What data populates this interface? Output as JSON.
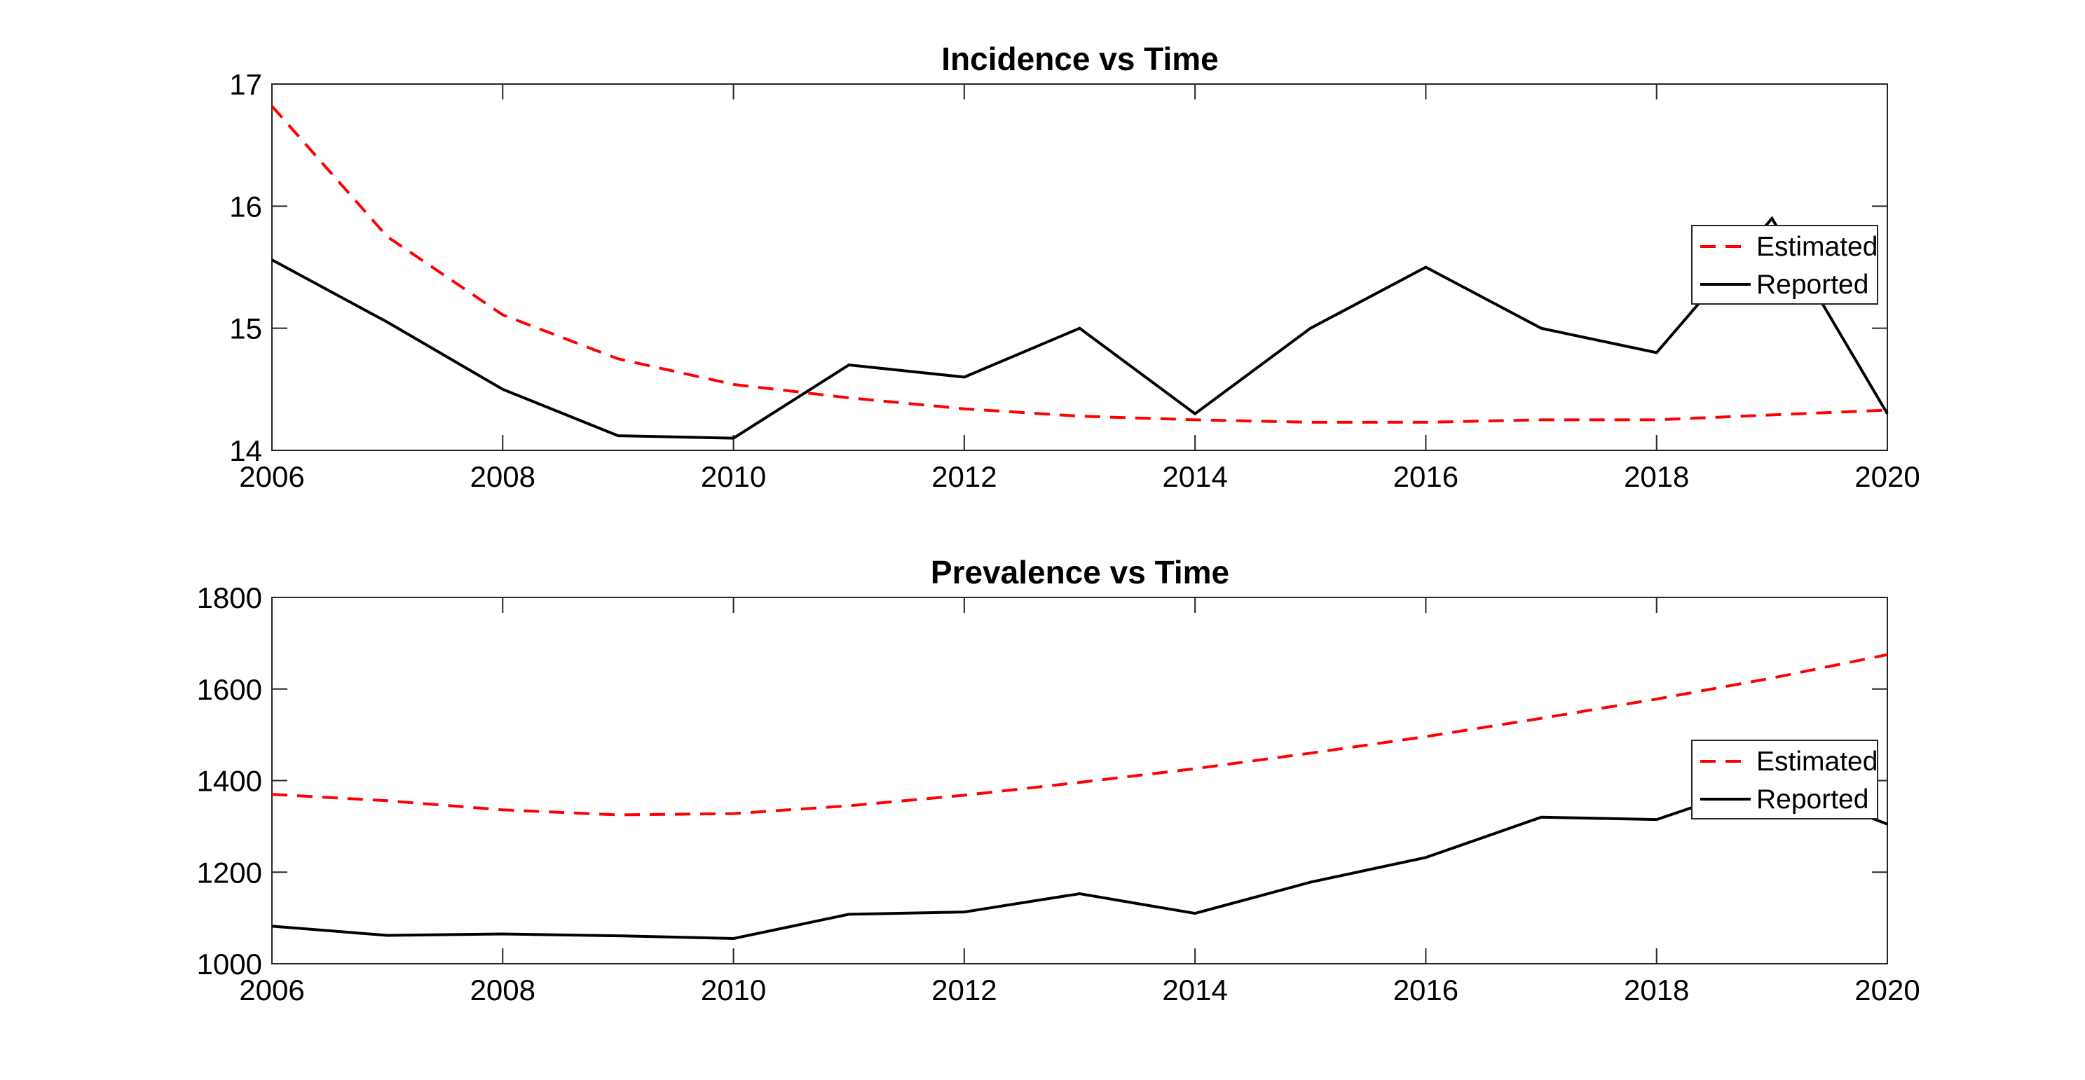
{
  "colors": {
    "estimated": "#ff0000",
    "reported": "#000000"
  },
  "chart_data": [
    {
      "type": "line",
      "title": "Incidence vs Time",
      "xlabel": "",
      "ylabel": "",
      "xlim": [
        2006,
        2020
      ],
      "ylim": [
        14,
        17
      ],
      "xticks": [
        "2006",
        "2008",
        "2010",
        "2012",
        "2014",
        "2016",
        "2018",
        "2020"
      ],
      "yticks": [
        "14",
        "15",
        "16",
        "17"
      ],
      "grid": false,
      "legend_position": "right",
      "x": [
        2006,
        2007,
        2008,
        2009,
        2010,
        2011,
        2012,
        2013,
        2014,
        2015,
        2016,
        2017,
        2018,
        2019,
        2020
      ],
      "series": [
        {
          "name": "Estimated",
          "style": "dashed",
          "color": "#ff0000",
          "values": [
            16.82,
            15.75,
            15.11,
            14.75,
            14.54,
            14.43,
            14.34,
            14.28,
            14.25,
            14.23,
            14.23,
            14.25,
            14.25,
            14.29,
            14.33
          ]
        },
        {
          "name": "Reported",
          "style": "solid",
          "color": "#000000",
          "values": [
            15.56,
            15.05,
            14.5,
            14.12,
            14.1,
            14.7,
            14.6,
            15.0,
            14.3,
            15.0,
            15.5,
            15.0,
            14.8,
            15.9,
            14.3
          ]
        }
      ]
    },
    {
      "type": "line",
      "title": "Prevalence vs Time",
      "xlabel": "",
      "ylabel": "",
      "xlim": [
        2006,
        2020
      ],
      "ylim": [
        1000,
        1800
      ],
      "xticks": [
        "2006",
        "2008",
        "2010",
        "2012",
        "2014",
        "2016",
        "2018",
        "2020"
      ],
      "yticks": [
        "1000",
        "1200",
        "1400",
        "1600",
        "1800"
      ],
      "grid": false,
      "legend_position": "right",
      "x": [
        2006,
        2007,
        2008,
        2009,
        2010,
        2011,
        2012,
        2013,
        2014,
        2015,
        2016,
        2017,
        2018,
        2019,
        2020
      ],
      "series": [
        {
          "name": "Estimated",
          "style": "dashed",
          "color": "#ff0000",
          "values": [
            1370,
            1356,
            1336,
            1325,
            1328,
            1345,
            1368,
            1396,
            1426,
            1460,
            1496,
            1536,
            1578,
            1624,
            1675
          ]
        },
        {
          "name": "Reported",
          "style": "solid",
          "color": "#000000",
          "values": [
            1082,
            1062,
            1065,
            1061,
            1055,
            1108,
            1113,
            1153,
            1110,
            1178,
            1232,
            1320,
            1315,
            1400,
            1305
          ]
        }
      ]
    }
  ]
}
